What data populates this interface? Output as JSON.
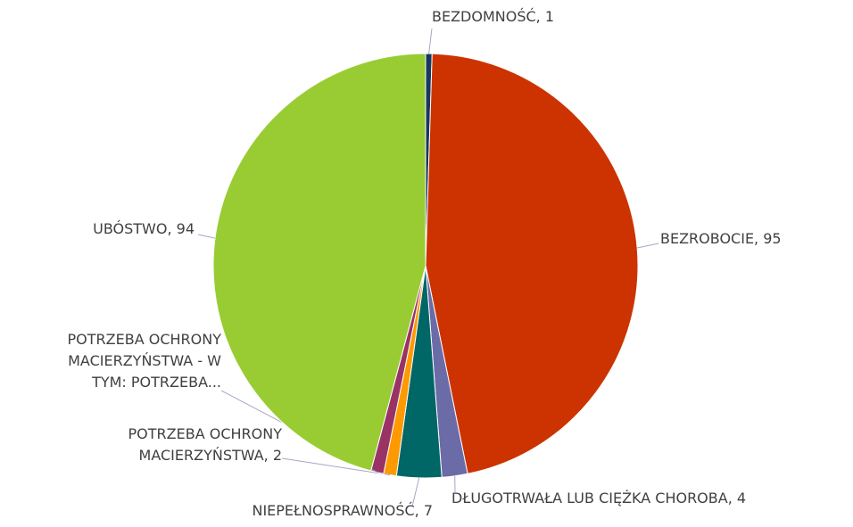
{
  "chart_data": {
    "type": "pie",
    "categories": [
      "BEZDOMNOŚĆ, 1",
      "BEZROBOCIE, 95",
      "DŁUGOTRWAŁA LUB CIĘŻKA CHOROBA, 4",
      "NIEPEŁNOSPRAWNOŚĆ, 7",
      "POTRZEBA OCHRONY\nMACIERZYŃSTWA, 2",
      "POTRZEBA OCHRONY\nMACIERZYŃSTWA - W\nTYM: POTRZEBA...",
      "UBÓSTWO, 94"
    ],
    "values": [
      1,
      95,
      4,
      7,
      2,
      2,
      94
    ],
    "colors": [
      "#17375e",
      "#cc3300",
      "#6b6ba8",
      "#006666",
      "#ff9900",
      "#993366",
      "#99cc33"
    ]
  }
}
